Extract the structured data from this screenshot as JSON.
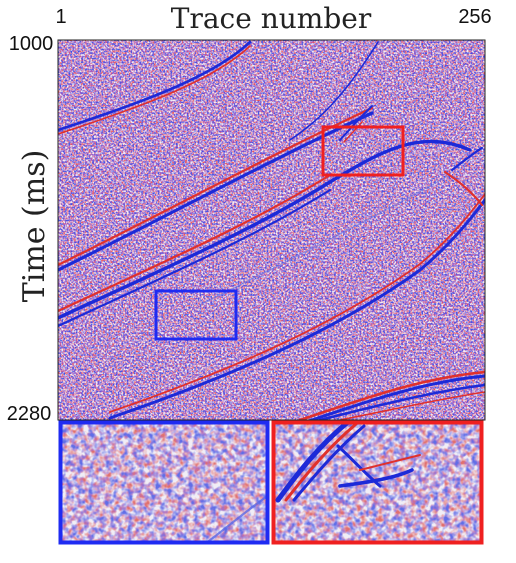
{
  "title": "Trace number",
  "ylabel": "Time (ms)",
  "x_ticks": {
    "left": "1",
    "right": "256"
  },
  "y_ticks": {
    "top": "1000",
    "bottom": "2280"
  },
  "colors": {
    "positive": "#e0302c",
    "negative": "#1c2ad8",
    "background": "#f3eef6",
    "box_blue": "#1f2bf2",
    "box_red": "#ef2020"
  },
  "panel": {
    "x_range": [
      1,
      256
    ],
    "y_range": [
      1000,
      2280
    ]
  }
}
